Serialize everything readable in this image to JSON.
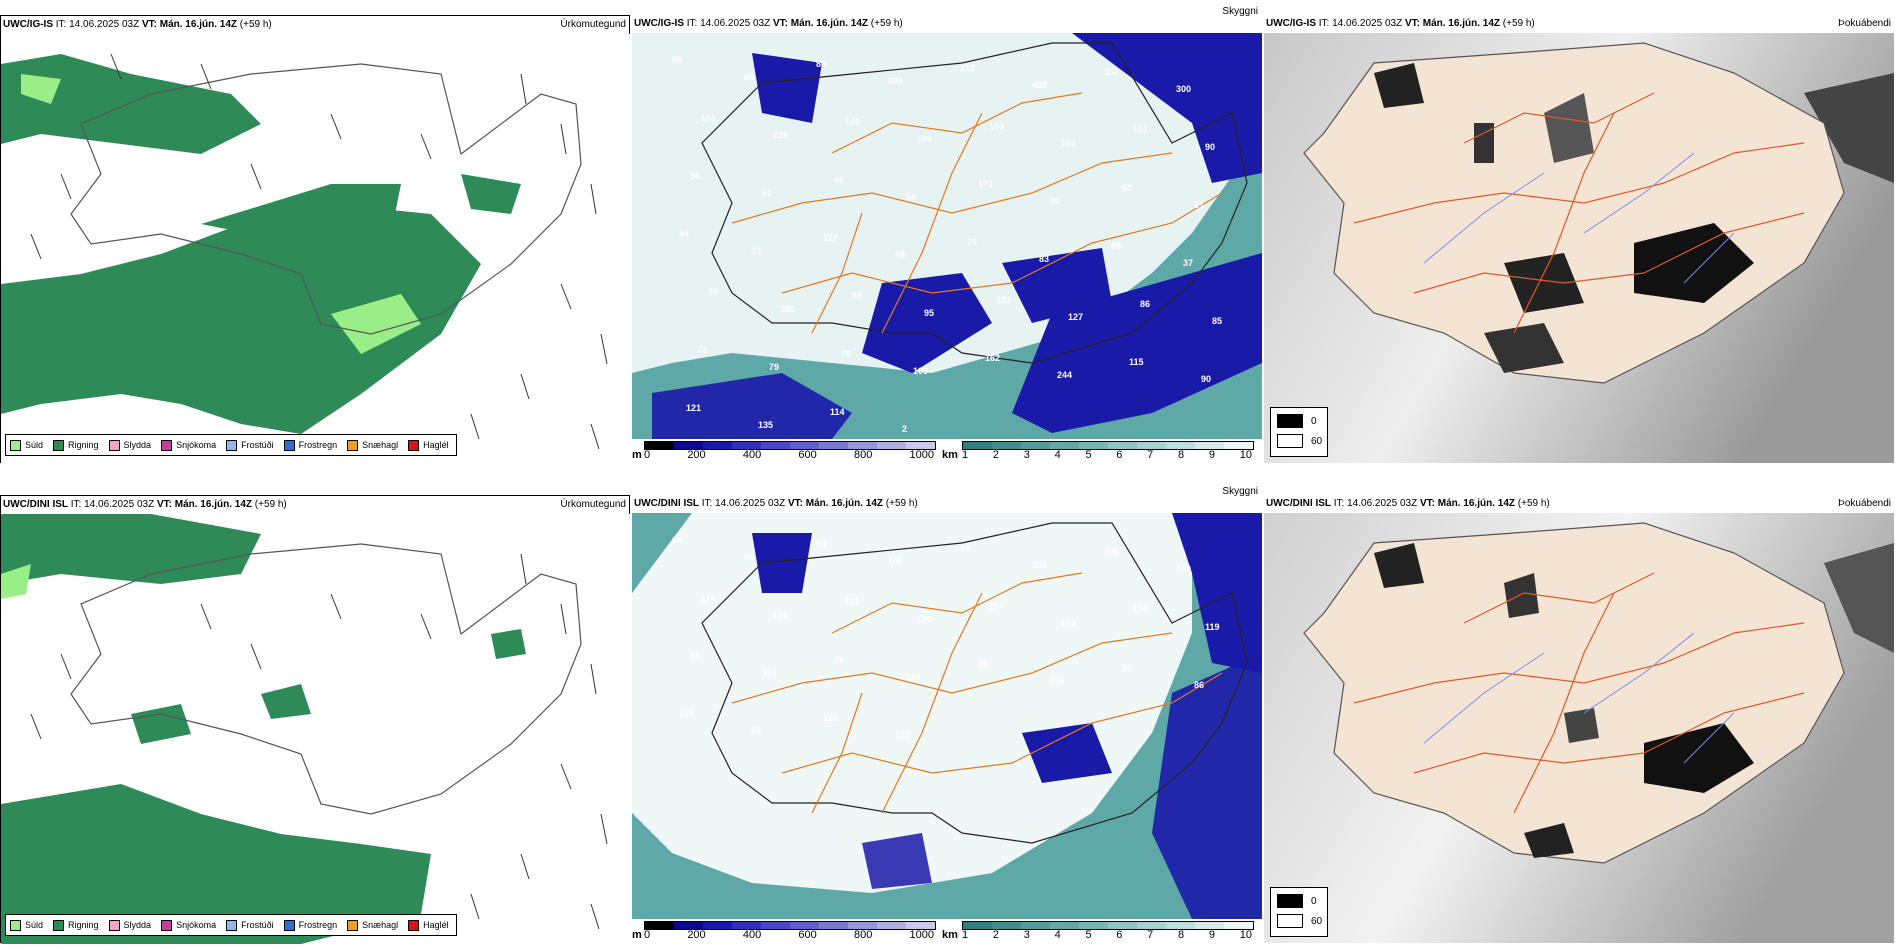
{
  "rows": [
    {
      "model": "UWC/IG-IS",
      "it_label": "IT:",
      "it_value": "14.06.2025 03Z",
      "vt_label": "VT:",
      "vt_value": "Mán. 16.jún. 14Z",
      "offset": "(+59 h)",
      "panels": [
        {
          "title": "Úrkomutegund"
        },
        {
          "title": "Skyggni",
          "labels": [
            "65",
            "64",
            "80",
            "886",
            "213",
            "400",
            "331",
            "300",
            "101",
            "238",
            "145",
            "105",
            "103",
            "101",
            "101",
            "90",
            "86",
            "61",
            "46",
            "56",
            "171",
            "80",
            "65",
            "51",
            "44",
            "33",
            "127",
            "48",
            "76",
            "83",
            "85",
            "37",
            "38",
            "102",
            "88",
            "95",
            "101",
            "127",
            "86",
            "85",
            "73",
            "79",
            "78",
            "109",
            "162",
            "244",
            "115",
            "90",
            "121",
            "135",
            "114",
            "2"
          ]
        },
        {
          "title": "Þokuábendi"
        }
      ]
    },
    {
      "model": "UWC/DINI ISL",
      "it_label": "IT:",
      "it_value": "14.06.2025 03Z",
      "vt_label": "VT:",
      "vt_value": "Mán. 16.jún. 14Z",
      "offset": "(+59 h)",
      "panels": [
        {
          "title": "Úrkomutegund"
        },
        {
          "title": "Skyggni",
          "labels": [
            "64",
            "80",
            "63",
            "100",
            "66",
            "103",
            "206",
            "120",
            "176",
            "126",
            "111",
            "130",
            "114",
            "193",
            "139",
            "119",
            "86",
            "112",
            "78",
            "116",
            "88",
            "236",
            "94",
            "86",
            "110",
            "83",
            "120",
            "123"
          ]
        },
        {
          "title": "Þokuábendi"
        }
      ]
    }
  ],
  "precip_legend": [
    {
      "label": "Súld",
      "color": "#99ee88"
    },
    {
      "label": "Rigning",
      "color": "#2e8b57"
    },
    {
      "label": "Slydda",
      "color": "#f4a6c8"
    },
    {
      "label": "Snjókoma",
      "color": "#c0409a"
    },
    {
      "label": "Frostúði",
      "color": "#8db8ee"
    },
    {
      "label": "Frostregn",
      "color": "#2f6fd0"
    },
    {
      "label": "Snæhagl",
      "color": "#f0a020"
    },
    {
      "label": "Haglél",
      "color": "#e01010"
    }
  ],
  "elev_legend": {
    "unit": "m",
    "ticks": [
      "0",
      "200",
      "400",
      "600",
      "800",
      "1000"
    ],
    "colors": [
      "#000000",
      "#0a0a8a",
      "#1a1aa8",
      "#3030b8",
      "#4848c4",
      "#6060cc",
      "#7a7ad4",
      "#9595dc",
      "#b0b0e4",
      "#cacaee"
    ]
  },
  "vis_legend": {
    "unit": "km",
    "ticks": [
      "1",
      "2",
      "3",
      "4",
      "5",
      "6",
      "7",
      "8",
      "9",
      "10"
    ],
    "colors": [
      "#2e7f7f",
      "#3e8e8e",
      "#4f9c9c",
      "#62aaaa",
      "#76b8b8",
      "#8cc6c6",
      "#a2d2d2",
      "#bcdede",
      "#d4eaea",
      "#eef6f6"
    ]
  },
  "fog_legend": [
    {
      "label": "0",
      "color": "#000000"
    },
    {
      "label": "60",
      "color": "#ffffff"
    }
  ]
}
